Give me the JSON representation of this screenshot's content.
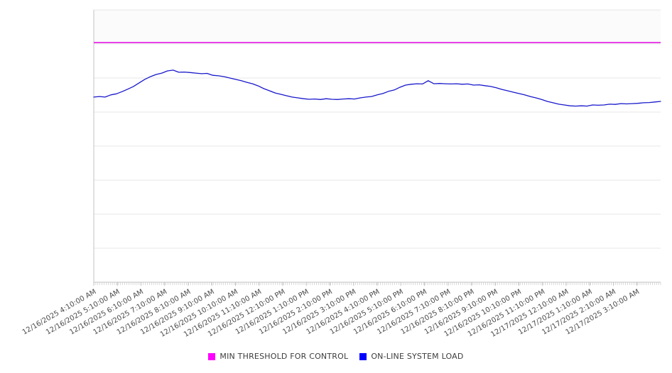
{
  "chart_data": {
    "type": "line",
    "title": "",
    "xlabel": "",
    "ylabel": "",
    "x_axis": {
      "tick_labels": [
        "12/16/2025 4:10:00 AM",
        "12/16/2025 5:10:00 AM",
        "12/16/2025 6:10:00 AM",
        "12/16/2025 7:10:00 AM",
        "12/16/2025 8:10:00 AM",
        "12/16/2025 9:10:00 AM",
        "12/16/2025 10:10:00 AM",
        "12/16/2025 11:10:00 AM",
        "12/16/2025 12:10:00 PM",
        "12/16/2025 1:10:00 PM",
        "12/16/2025 2:10:00 PM",
        "12/16/2025 3:10:00 PM",
        "12/16/2025 4:10:00 PM",
        "12/16/2025 5:10:00 PM",
        "12/16/2025 6:10:00 PM",
        "12/16/2025 7:10:00 PM",
        "12/16/2025 8:10:00 PM",
        "12/16/2025 9:10:00 PM",
        "12/16/2025 10:10:00 PM",
        "12/16/2025 11:10:00 PM",
        "12/17/2025 12:10:00 AM",
        "12/17/2025 1:10:00 AM",
        "12/17/2025 2:10:00 AM",
        "12/17/2025 3:10:00 AM"
      ],
      "label_rotation_deg": -30,
      "minor_tick_count": 276
    },
    "y_axis": {
      "labels_visible": false,
      "gridline_count": 8,
      "value_units": "percent of plot height (no y-axis tick labels shown in chart)"
    },
    "legend_position": "bottom",
    "grid": "horizontal-only",
    "series": [
      {
        "name": "MIN THRESHOLD FOR CONTROL",
        "swatch_color": "#ff00ff",
        "line_color": "#e316e3",
        "line_width": 1.6,
        "kind": "constant",
        "value": 88.0
      },
      {
        "name": "ON-LINE SYSTEM LOAD",
        "swatch_color": "#0000ff",
        "line_color": "#1818cc",
        "line_width": 1.3,
        "kind": "polyline",
        "values": [
          68.0,
          68.2,
          68.0,
          68.8,
          69.2,
          70.0,
          70.9,
          71.9,
          73.2,
          74.5,
          75.5,
          76.3,
          76.8,
          77.6,
          77.9,
          77.1,
          77.2,
          77.0,
          76.8,
          76.6,
          76.7,
          76.0,
          75.8,
          75.5,
          75.0,
          74.5,
          74.0,
          73.4,
          72.9,
          72.1,
          71.1,
          70.3,
          69.5,
          69.0,
          68.5,
          68.0,
          67.7,
          67.4,
          67.2,
          67.3,
          67.1,
          67.4,
          67.2,
          67.1,
          67.3,
          67.4,
          67.3,
          67.7,
          68.0,
          68.2,
          68.8,
          69.3,
          70.1,
          70.6,
          71.6,
          72.4,
          72.7,
          72.9,
          72.8,
          74.0,
          72.9,
          73.0,
          72.9,
          72.8,
          72.9,
          72.7,
          72.8,
          72.4,
          72.5,
          72.2,
          71.9,
          71.4,
          70.8,
          70.3,
          69.8,
          69.3,
          68.8,
          68.2,
          67.7,
          67.1,
          66.4,
          65.9,
          65.4,
          65.1,
          64.8,
          64.7,
          64.8,
          64.7,
          65.1,
          65.0,
          65.1,
          65.4,
          65.3,
          65.6,
          65.5,
          65.6,
          65.7,
          65.9,
          66.0,
          66.2,
          66.4
        ]
      }
    ],
    "colors": {
      "gridline": "#e7e7e7",
      "axis_line": "#c3c3c3",
      "tick": "#c3c3c3",
      "axis_label_text": "#4a4a4a",
      "upper_band_fill": "#fbfbfb",
      "background": "#ffffff"
    }
  }
}
